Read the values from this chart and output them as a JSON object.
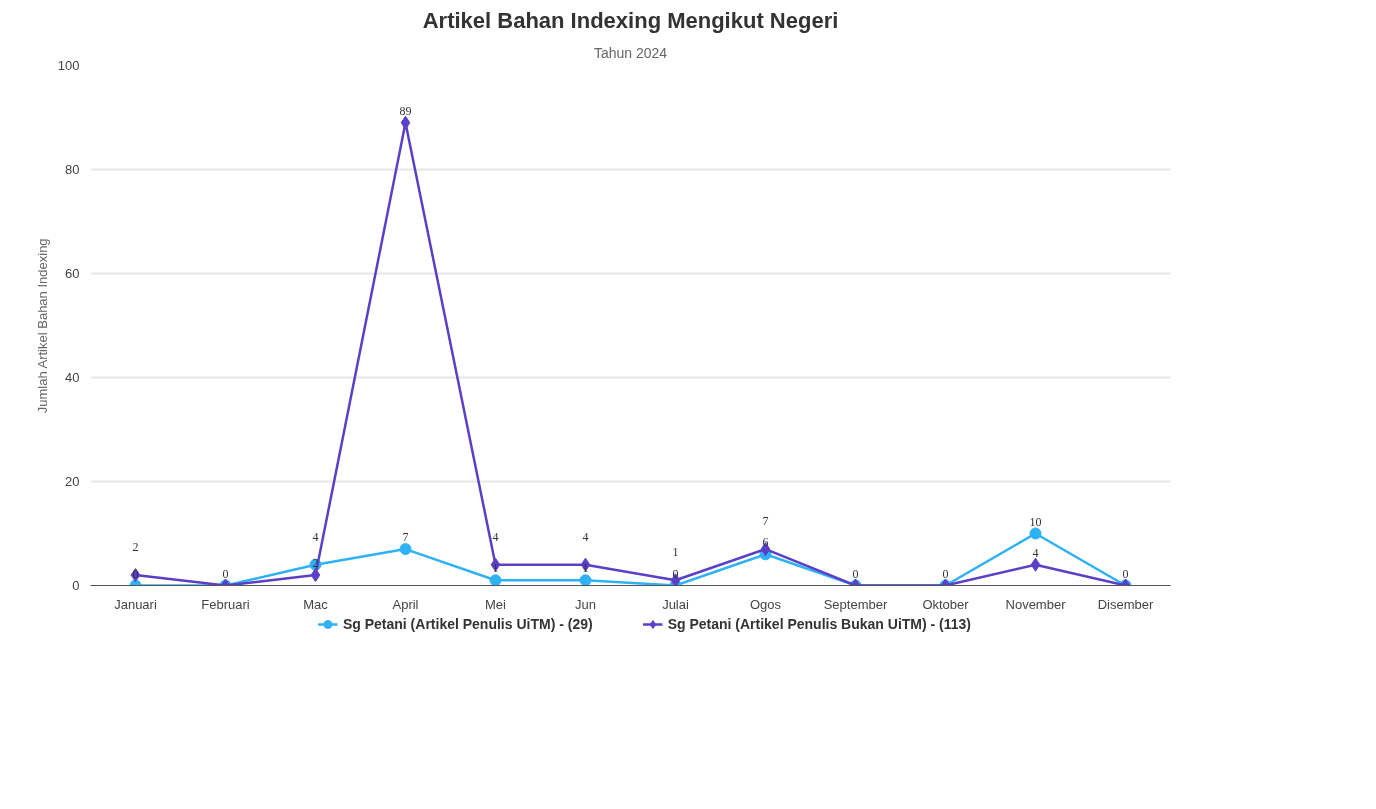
{
  "chart_data": {
    "type": "line",
    "title": "Artikel Bahan Indexing Mengikut Negeri",
    "subtitle": "Tahun 2024",
    "ylabel": "Jumlah Artikel Bahan Indexing",
    "categories": [
      "Januari",
      "Februari",
      "Mac",
      "April",
      "Mei",
      "Jun",
      "Julai",
      "Ogos",
      "September",
      "Oktober",
      "November",
      "Disember"
    ],
    "series": [
      {
        "name": "Sg Petani (Artikel Penulis UiTM) - (29)",
        "color": "#2fb1f5",
        "marker": "circle",
        "values": [
          0,
          0,
          4,
          7,
          1,
          1,
          0,
          6,
          0,
          0,
          10,
          0
        ],
        "value_labels": [
          "0",
          null,
          "4",
          "7",
          "1",
          "1",
          "0",
          "6",
          null,
          null,
          "10",
          null
        ]
      },
      {
        "name": "Sg Petani (Artikel Penulis Bukan UiTM) - (113)",
        "color": "#5b3fc8",
        "marker": "diamond",
        "values": [
          2,
          0,
          2,
          89,
          4,
          4,
          1,
          7,
          0,
          0,
          4,
          0
        ],
        "value_labels": [
          "2",
          "0",
          "2",
          "89",
          "4",
          "4",
          "1",
          "7",
          "0",
          "0",
          "4",
          "0"
        ]
      }
    ],
    "ylim": [
      0,
      100
    ],
    "yticks": [
      0,
      20,
      40,
      60,
      80,
      100
    ],
    "grid": "y",
    "legend": "bottom"
  }
}
